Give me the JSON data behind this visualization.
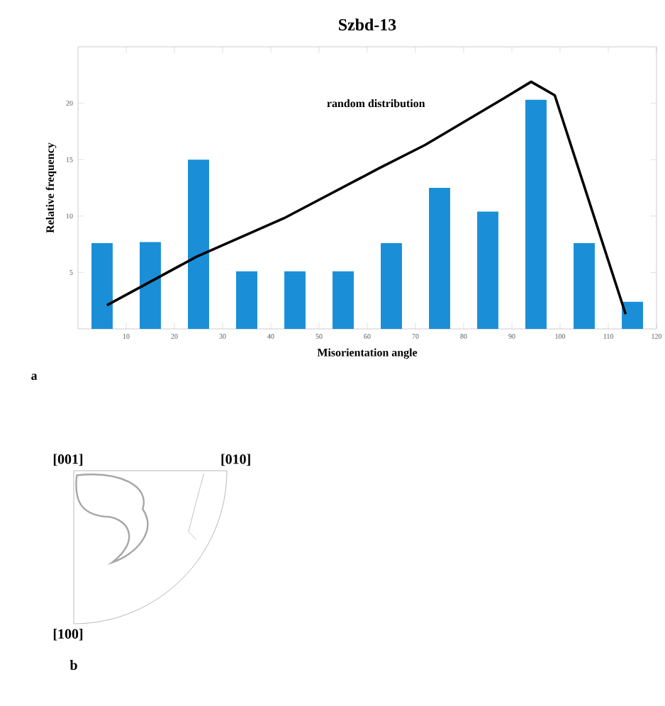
{
  "chart_data": [
    {
      "type": "bar",
      "title": "Szbd-13",
      "xlabel": "Misorientation angle",
      "ylabel": "Relative frequency",
      "annotations": [
        "a"
      ],
      "x": [
        5,
        15,
        25,
        35,
        45,
        55,
        65,
        75,
        85,
        95,
        105,
        115
      ],
      "series": [
        {
          "type": "bar",
          "color": "#1a8fd8",
          "values": [
            7.6,
            7.7,
            15.0,
            5.1,
            5.1,
            5.1,
            7.6,
            12.5,
            10.4,
            20.3,
            7.6,
            2.4
          ]
        },
        {
          "type": "line",
          "name": "random distribution",
          "color": "#000000",
          "x": [
            6,
            24.6,
            42.7,
            62.3,
            72,
            88.2,
            94,
            98.9,
            113.6
          ],
          "values": [
            2.1,
            6.4,
            9.8,
            14.2,
            16.3,
            20.4,
            21.9,
            20.7,
            1.3
          ]
        }
      ],
      "xlim": [
        0,
        120
      ],
      "xticks": [
        10,
        20,
        30,
        40,
        50,
        60,
        70,
        80,
        90,
        100,
        110,
        120
      ],
      "ylim": [
        0,
        25
      ],
      "yticks": [
        5,
        10,
        15,
        20
      ]
    },
    {
      "type": "other",
      "annotations": [
        "[001]",
        "[010]",
        "[100]",
        "b"
      ]
    }
  ]
}
